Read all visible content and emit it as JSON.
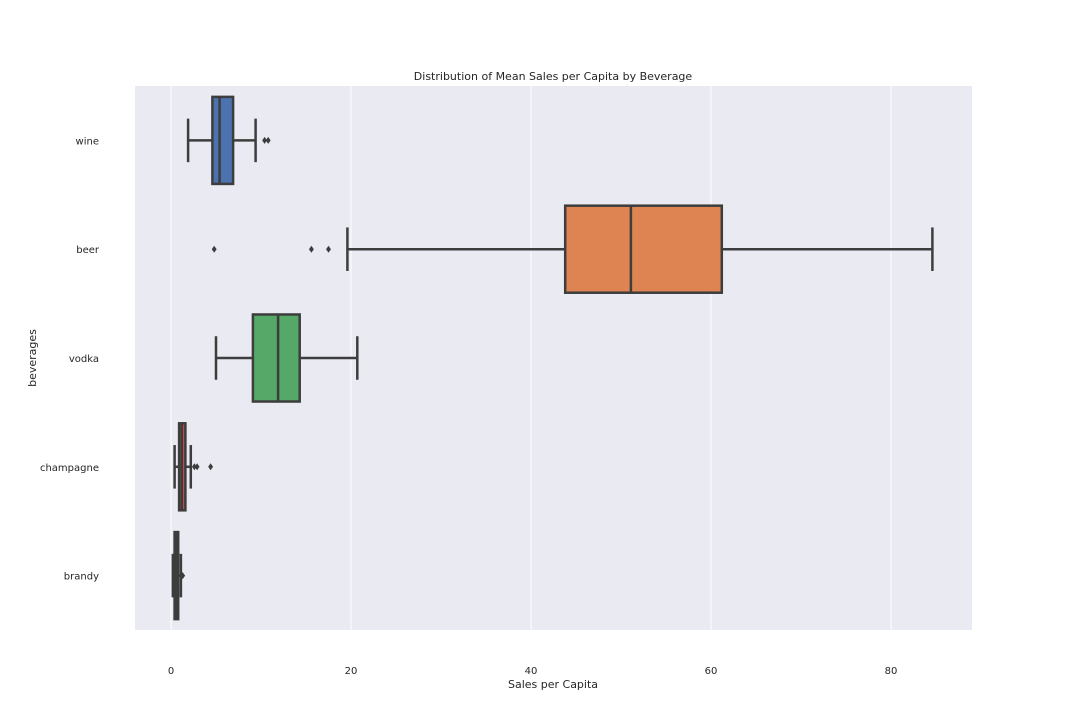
{
  "chart_data": {
    "type": "box",
    "orientation": "horizontal",
    "title": "Distribution of Mean Sales per Capita by Beverage",
    "xlabel": "Sales per Capita",
    "ylabel": "beverages",
    "xlim": [
      -4,
      89
    ],
    "xticks": [
      0,
      20,
      40,
      60,
      80
    ],
    "xtick_labels": [
      "0",
      "20",
      "40",
      "60",
      "80"
    ],
    "grid": true,
    "background": "#EAEAF2",
    "categories": [
      "wine",
      "beer",
      "vodka",
      "champagne",
      "brandy"
    ],
    "boxes": [
      {
        "category": "wine",
        "color": "#4C72B0",
        "whisker_low": 1.9,
        "q1": 4.6,
        "median": 5.4,
        "q3": 6.9,
        "whisker_high": 9.4,
        "outliers": [
          10.4,
          10.8
        ]
      },
      {
        "category": "beer",
        "color": "#DD8452",
        "whisker_low": 19.6,
        "q1": 43.8,
        "median": 51.1,
        "q3": 61.2,
        "whisker_high": 84.6,
        "outliers": [
          4.8,
          15.6,
          17.5
        ]
      },
      {
        "category": "vodka",
        "color": "#55A868",
        "whisker_low": 5.0,
        "q1": 9.1,
        "median": 11.9,
        "q3": 14.3,
        "whisker_high": 20.7,
        "outliers": []
      },
      {
        "category": "champagne",
        "color": "#C44E52",
        "whisker_low": 0.4,
        "q1": 0.9,
        "median": 1.2,
        "q3": 1.6,
        "whisker_high": 2.2,
        "outliers": [
          2.6,
          2.9,
          4.4
        ]
      },
      {
        "category": "brandy",
        "color": "#8172B3",
        "whisker_low": 0.2,
        "q1": 0.4,
        "median": 0.6,
        "q3": 0.8,
        "whisker_high": 1.1,
        "outliers": [
          1.2,
          1.3
        ]
      }
    ]
  }
}
